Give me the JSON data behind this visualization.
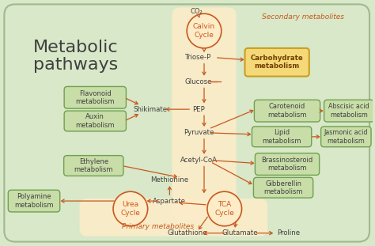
{
  "bg_color": "#d8e8c8",
  "bg_outer": "#c8dab8",
  "cream_bg": "#fdecc8",
  "yellow_box_bg": "#f5d060",
  "green_box_bg": "#c8dda8",
  "orange_text": "#c85820",
  "dark_text": "#404040",
  "arrow_color": "#c85820",
  "title": "Metabolic\npathways",
  "secondary_label": "Secondary metabolites",
  "primary_label": "Primary metabolites",
  "fig_width": 4.74,
  "fig_height": 3.11
}
